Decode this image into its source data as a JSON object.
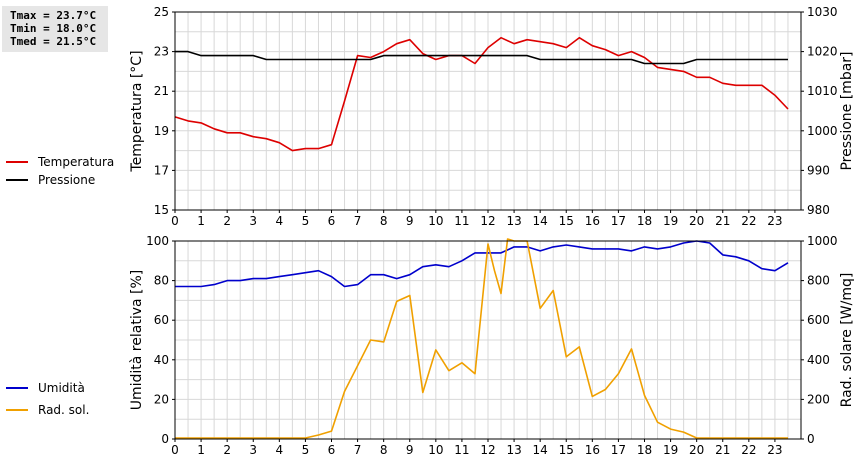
{
  "stats": {
    "tmax": "Tmax = 23.7°C",
    "tmin": "Tmin = 18.0°C",
    "tmed": "Tmed = 21.5°C"
  },
  "colors": {
    "temperature": "#dd0000",
    "pressure": "#000000",
    "humidity": "#0000cc",
    "radiation": "#f0a000",
    "grid": "#d8d8d8"
  },
  "chart_data": [
    {
      "type": "line",
      "title": "",
      "xlabel": "",
      "xlim": [
        0,
        24
      ],
      "x_ticks": [
        0,
        1,
        2,
        3,
        4,
        5,
        6,
        7,
        8,
        9,
        10,
        11,
        12,
        13,
        14,
        15,
        16,
        17,
        18,
        19,
        20,
        21,
        22,
        23
      ],
      "y_left": {
        "label": "Temperatura [°C]",
        "range": [
          15,
          25
        ],
        "ticks": [
          15,
          17,
          19,
          21,
          23,
          25
        ]
      },
      "y_right": {
        "label": "Pressione [mbar]",
        "range": [
          980,
          1030
        ],
        "ticks": [
          980,
          990,
          1000,
          1010,
          1020,
          1030
        ]
      },
      "grid": true,
      "legend_position": "left",
      "series": [
        {
          "name": "Temperatura",
          "axis": "left",
          "color": "#dd0000",
          "x": [
            0,
            0.5,
            1,
            1.5,
            2,
            2.5,
            3,
            3.5,
            4,
            4.5,
            5,
            5.5,
            6,
            6.5,
            7,
            7.5,
            8,
            8.5,
            9,
            9.5,
            10,
            10.5,
            11,
            11.5,
            12,
            12.5,
            13,
            13.5,
            14,
            14.5,
            15,
            15.5,
            16,
            16.5,
            17,
            17.5,
            18,
            18.5,
            19,
            19.5,
            20,
            20.5,
            21,
            21.5,
            22,
            22.5,
            23,
            23.5
          ],
          "y": [
            19.7,
            19.5,
            19.4,
            19.1,
            18.9,
            18.9,
            18.7,
            18.6,
            18.4,
            18.0,
            18.1,
            18.1,
            18.3,
            20.5,
            22.8,
            22.7,
            23.0,
            23.4,
            23.6,
            22.9,
            22.6,
            22.8,
            22.8,
            22.4,
            23.2,
            23.7,
            23.4,
            23.6,
            23.5,
            23.4,
            23.2,
            23.7,
            23.3,
            23.1,
            22.8,
            23.0,
            22.7,
            22.2,
            22.1,
            22.0,
            21.7,
            21.7,
            21.4,
            21.3,
            21.3,
            21.3,
            20.8,
            20.1
          ]
        },
        {
          "name": "Pressione",
          "axis": "right",
          "color": "#000000",
          "x": [
            0,
            0.5,
            1,
            1.5,
            2,
            2.5,
            3,
            3.5,
            4,
            4.5,
            5,
            5.5,
            6,
            6.5,
            7,
            7.5,
            8,
            8.5,
            9,
            9.5,
            10,
            10.5,
            11,
            11.5,
            12,
            12.5,
            13,
            13.5,
            14,
            14.5,
            15,
            15.5,
            16,
            16.5,
            17,
            17.5,
            18,
            18.5,
            19,
            19.5,
            20,
            20.5,
            21,
            21.5,
            22,
            22.5,
            23,
            23.5
          ],
          "y": [
            1020,
            1020,
            1019,
            1019,
            1019,
            1019,
            1019,
            1018,
            1018,
            1018,
            1018,
            1018,
            1018,
            1018,
            1018,
            1018,
            1019,
            1019,
            1019,
            1019,
            1019,
            1019,
            1019,
            1019,
            1019,
            1019,
            1019,
            1019,
            1018,
            1018,
            1018,
            1018,
            1018,
            1018,
            1018,
            1018,
            1017,
            1017,
            1017,
            1017,
            1018,
            1018,
            1018,
            1018,
            1018,
            1018,
            1018,
            1018
          ]
        }
      ]
    },
    {
      "type": "line",
      "title": "",
      "xlabel": "",
      "xlim": [
        0,
        24
      ],
      "x_ticks": [
        0,
        1,
        2,
        3,
        4,
        5,
        6,
        7,
        8,
        9,
        10,
        11,
        12,
        13,
        14,
        15,
        16,
        17,
        18,
        19,
        20,
        21,
        22,
        23
      ],
      "y_left": {
        "label": "Umidità relativa [%]",
        "range": [
          0,
          100
        ],
        "ticks": [
          0,
          20,
          40,
          60,
          80,
          100
        ]
      },
      "y_right": {
        "label": "Rad. solare [W/mq]",
        "range": [
          0,
          1000
        ],
        "ticks": [
          0,
          200,
          400,
          600,
          800,
          1000
        ]
      },
      "grid": true,
      "legend_position": "left",
      "series": [
        {
          "name": "Umidità",
          "axis": "left",
          "color": "#0000cc",
          "x": [
            0,
            0.5,
            1,
            1.5,
            2,
            2.5,
            3,
            3.5,
            4,
            4.5,
            5,
            5.5,
            6,
            6.5,
            7,
            7.5,
            8,
            8.5,
            9,
            9.5,
            10,
            10.5,
            11,
            11.5,
            12,
            12.5,
            13,
            13.5,
            14,
            14.5,
            15,
            15.5,
            16,
            16.5,
            17,
            17.5,
            18,
            18.5,
            19,
            19.5,
            20,
            20.5,
            21,
            21.5,
            22,
            22.5,
            23,
            23.5
          ],
          "y": [
            77,
            77,
            77,
            78,
            80,
            80,
            81,
            81,
            82,
            83,
            84,
            85,
            82,
            77,
            78,
            83,
            83,
            81,
            83,
            87,
            88,
            87,
            90,
            94,
            94,
            94,
            97,
            97,
            95,
            97,
            98,
            97,
            96,
            96,
            96,
            95,
            97,
            96,
            97,
            99,
            100,
            99,
            93,
            92,
            90,
            86,
            85,
            89
          ]
        },
        {
          "name": "Rad. sol.",
          "axis": "right",
          "color": "#f0a000",
          "x": [
            0,
            0.5,
            1,
            1.5,
            2,
            2.5,
            3,
            3.5,
            4,
            4.5,
            5,
            5.5,
            6,
            6.5,
            7,
            7.5,
            8,
            8.5,
            9,
            9.5,
            10,
            10.5,
            11,
            11.5,
            12,
            12.25,
            12.5,
            12.75,
            13,
            13.5,
            14,
            14.5,
            15,
            15.5,
            16,
            16.5,
            17,
            17.5,
            18,
            18.5,
            19,
            19.5,
            20,
            20.5,
            21,
            21.5,
            22,
            22.5,
            23,
            23.5
          ],
          "y": [
            5,
            5,
            5,
            5,
            5,
            5,
            5,
            5,
            5,
            5,
            5,
            20,
            40,
            240,
            370,
            500,
            490,
            695,
            725,
            235,
            450,
            345,
            385,
            330,
            985,
            850,
            735,
            1010,
            1000,
            1000,
            660,
            750,
            415,
            465,
            215,
            250,
            330,
            455,
            220,
            85,
            50,
            35,
            5,
            5,
            5,
            5,
            5,
            5,
            5,
            5
          ]
        }
      ]
    }
  ]
}
